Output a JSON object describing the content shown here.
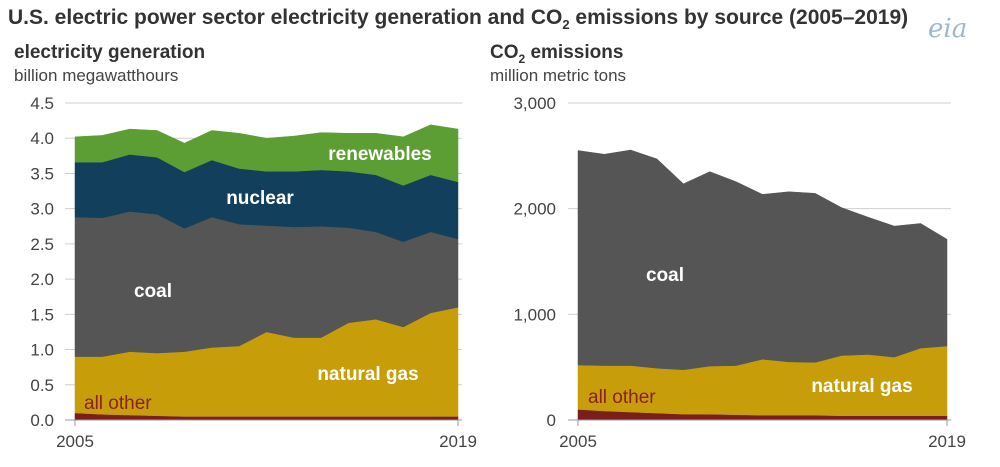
{
  "figure": {
    "title_prefix": "U.S. electric power sector electricity generation and CO",
    "title_sub": "2",
    "title_suffix": " emissions by source (2005–2019)",
    "logo_text": "eia"
  },
  "chart_data": [
    {
      "type": "area",
      "stacked": true,
      "title": "electricity generation",
      "ylabel": "billion megawatthours",
      "x": [
        2005,
        2006,
        2007,
        2008,
        2009,
        2010,
        2011,
        2012,
        2013,
        2014,
        2015,
        2016,
        2017,
        2018,
        2019
      ],
      "x_tick_labels": [
        "2005",
        "2019"
      ],
      "ylim": [
        0,
        4.5
      ],
      "y_ticks": [
        "0.0",
        "0.5",
        "1.0",
        "1.5",
        "2.0",
        "2.5",
        "3.0",
        "3.5",
        "4.0",
        "4.5"
      ],
      "grid": true,
      "series": [
        {
          "name": "all other",
          "color": "#7a1d1d",
          "values": [
            0.1,
            0.08,
            0.07,
            0.06,
            0.05,
            0.05,
            0.05,
            0.05,
            0.05,
            0.05,
            0.05,
            0.05,
            0.05,
            0.05,
            0.05
          ]
        },
        {
          "name": "natural gas",
          "color": "#c79e09",
          "values": [
            0.8,
            0.82,
            0.9,
            0.89,
            0.92,
            0.98,
            1.0,
            1.2,
            1.12,
            1.12,
            1.33,
            1.38,
            1.27,
            1.47,
            1.55
          ]
        },
        {
          "name": "coal",
          "color": "#555555",
          "values": [
            1.98,
            1.97,
            1.99,
            1.97,
            1.75,
            1.85,
            1.73,
            1.51,
            1.57,
            1.58,
            1.35,
            1.24,
            1.21,
            1.15,
            0.97
          ]
        },
        {
          "name": "nuclear",
          "color": "#12405c",
          "values": [
            0.78,
            0.79,
            0.81,
            0.81,
            0.8,
            0.81,
            0.79,
            0.77,
            0.79,
            0.8,
            0.8,
            0.81,
            0.8,
            0.81,
            0.81
          ]
        },
        {
          "name": "renewables",
          "color": "#5c9e33",
          "values": [
            0.36,
            0.38,
            0.36,
            0.38,
            0.41,
            0.42,
            0.5,
            0.47,
            0.5,
            0.53,
            0.54,
            0.59,
            0.69,
            0.71,
            0.75
          ]
        }
      ]
    },
    {
      "type": "area",
      "stacked": true,
      "title_prefix": "CO",
      "title_sub": "2",
      "title_suffix": " emissions",
      "ylabel": "million metric tons",
      "x": [
        2005,
        2006,
        2007,
        2008,
        2009,
        2010,
        2011,
        2012,
        2013,
        2014,
        2015,
        2016,
        2017,
        2018,
        2019
      ],
      "x_tick_labels": [
        "2005",
        "2019"
      ],
      "ylim": [
        0,
        3000
      ],
      "y_ticks": [
        "0",
        "1,000",
        "2,000",
        "3,000"
      ],
      "grid": true,
      "series": [
        {
          "name": "all other",
          "color": "#7a1d1d",
          "values": [
            100,
            85,
            75,
            65,
            55,
            55,
            50,
            45,
            45,
            45,
            40,
            40,
            40,
            40,
            40
          ]
        },
        {
          "name": "natural gas",
          "color": "#c79e09",
          "values": [
            420,
            430,
            440,
            425,
            420,
            455,
            465,
            530,
            505,
            500,
            570,
            580,
            555,
            640,
            660
          ]
        },
        {
          "name": "coal",
          "color": "#555555",
          "values": [
            2030,
            2000,
            2040,
            1980,
            1760,
            1840,
            1740,
            1560,
            1610,
            1600,
            1400,
            1300,
            1240,
            1180,
            1010
          ]
        }
      ]
    }
  ],
  "labels": {
    "left": {
      "renewables": "renewables",
      "nuclear": "nuclear",
      "coal": "coal",
      "natural_gas": "natural gas",
      "all_other": "all other"
    },
    "right": {
      "coal": "coal",
      "natural_gas": "natural gas",
      "all_other": "all other"
    }
  }
}
